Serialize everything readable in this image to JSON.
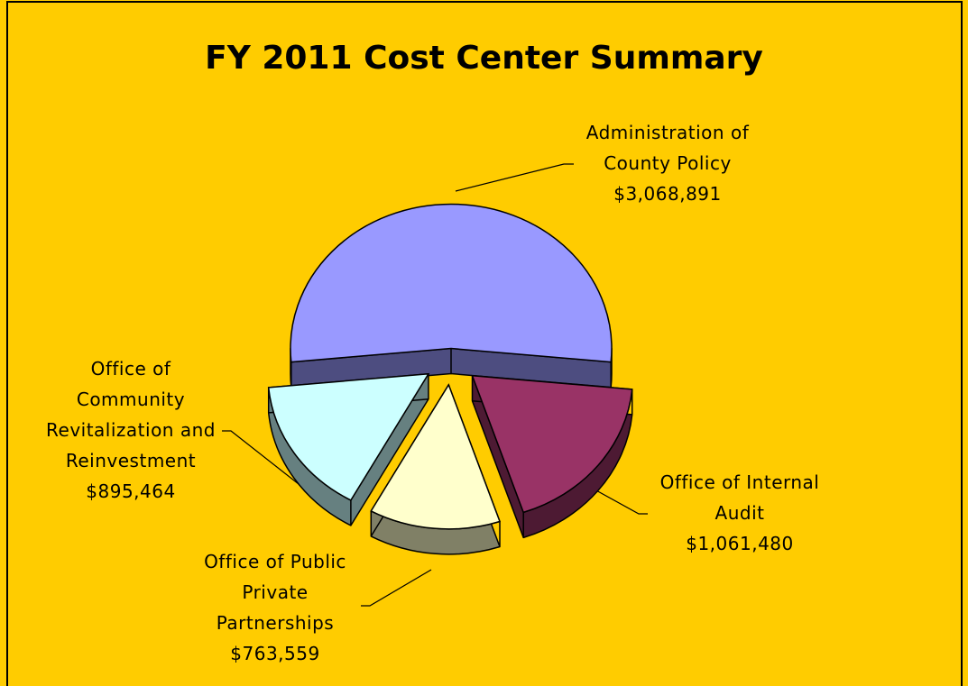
{
  "chart_data": {
    "type": "pie",
    "title": "FY 2011 Cost Center Summary",
    "categories": [
      "Administration of\nCounty Policy",
      "Office of Internal\nAudit",
      "Office of Public\nPrivate\nPartnerships",
      "Office of\nCommunity\nRevitalization and\nReinvestment"
    ],
    "values": [
      3068891,
      1061480,
      763559,
      895464
    ],
    "value_labels": [
      "$3,068,891",
      "$1,061,480",
      "$763,559",
      "$895,464"
    ],
    "colors": [
      "#9999ff",
      "#993366",
      "#ffffcc",
      "#ccffff"
    ],
    "side_colors": [
      "#4d4d80",
      "#4d1a33",
      "#808066",
      "#668080"
    ]
  }
}
